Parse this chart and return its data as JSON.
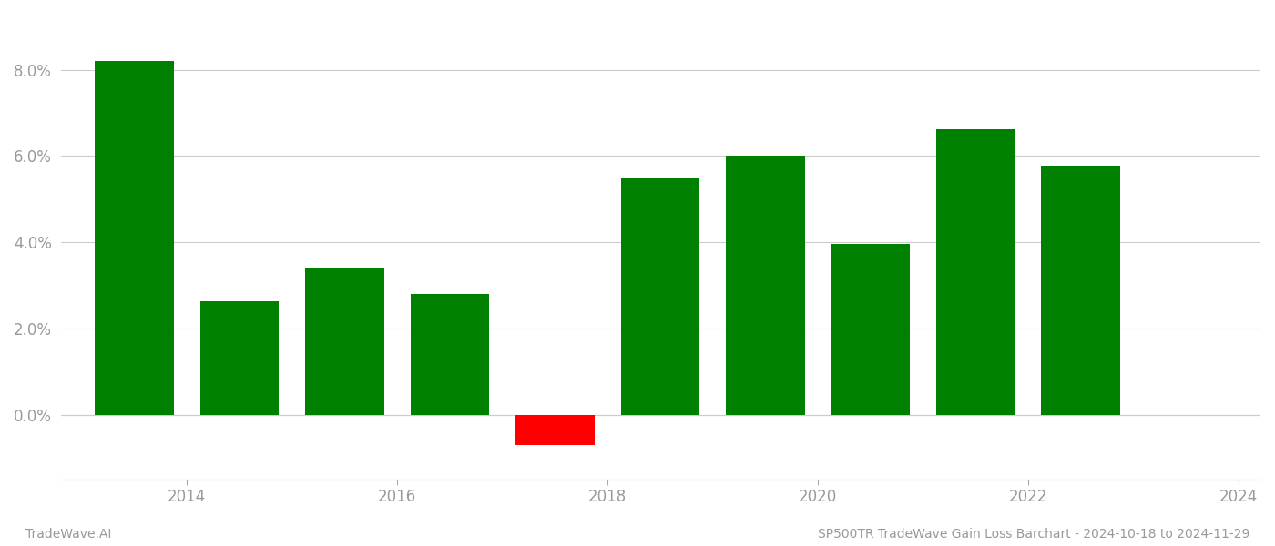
{
  "years": [
    2013.5,
    2014.5,
    2015.5,
    2016.5,
    2017.5,
    2018.5,
    2019.5,
    2020.5,
    2021.5,
    2022.5
  ],
  "values": [
    0.082,
    0.0262,
    0.034,
    0.028,
    -0.007,
    0.0548,
    0.06,
    0.0395,
    0.0662,
    0.0578
  ],
  "bar_color_positive": "#008000",
  "bar_color_negative": "#ff0000",
  "background_color": "#ffffff",
  "footer_left": "TradeWave.AI",
  "footer_right": "SP500TR TradeWave Gain Loss Barchart - 2024-10-18 to 2024-11-29",
  "ylim_min": -0.015,
  "ylim_max": 0.093,
  "xlim_min": 2012.8,
  "xlim_max": 2024.2,
  "bar_width": 0.75,
  "grid_color": "#cccccc",
  "tick_label_color": "#999999",
  "footer_color": "#999999",
  "footer_fontsize": 10,
  "tick_fontsize": 12,
  "xticks": [
    2014,
    2016,
    2018,
    2020,
    2022,
    2024
  ],
  "yticks": [
    0.0,
    0.02,
    0.04,
    0.06,
    0.08
  ]
}
